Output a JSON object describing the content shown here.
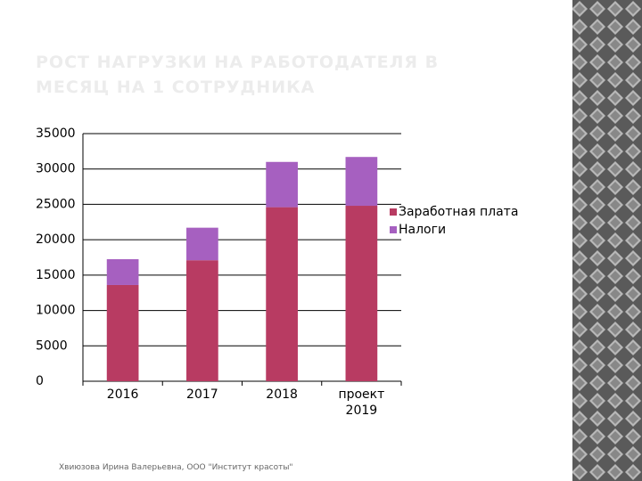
{
  "title": "РОСТ НАГРУЗКИ НА РАБОТОДАТЕЛЯ В МЕСЯЦ  НА 1 СОТРУДНИКА",
  "footer": "Хвиюзова Ирина Валерьевна, ООО \"Институт красоты\"",
  "chart_data": {
    "type": "stacked-bar",
    "categories": [
      "2016",
      "2017",
      "2018",
      "проект 2019"
    ],
    "series": [
      {
        "name": "Заработная плата",
        "color": "#b83b62",
        "values": [
          13600,
          17100,
          24600,
          24800
        ]
      },
      {
        "name": "Налоги",
        "color": "#a660c0",
        "values": [
          3650,
          4600,
          6400,
          6900
        ]
      }
    ],
    "ylim": [
      0,
      35000
    ],
    "yticks": [
      0,
      5000,
      10000,
      15000,
      20000,
      25000,
      30000,
      35000
    ],
    "grid": true
  }
}
